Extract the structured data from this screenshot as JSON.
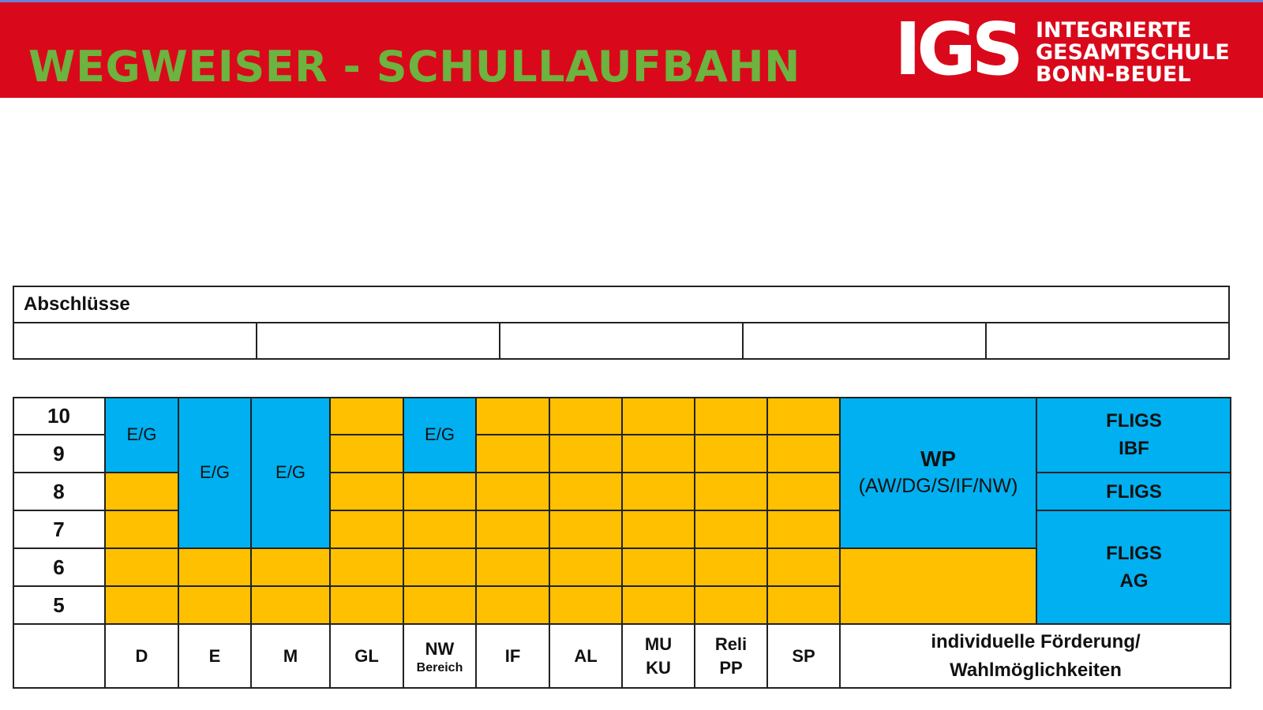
{
  "header": {
    "title": "WEGWEISER - SCHULLAUFBAHN",
    "logo_short": "IGS",
    "logo_lines": [
      "INTEGRIERTE",
      "GESAMTSCHULE",
      "BONN-BEUEL"
    ],
    "background_color": "#d9091b",
    "title_color": "#6cb33f"
  },
  "abschluesse": {
    "heading": "Abschlüsse",
    "cells": [
      "",
      "",
      "",
      "",
      ""
    ]
  },
  "plan": {
    "grades": [
      "10",
      "9",
      "8",
      "7",
      "6",
      "5"
    ],
    "eg_label": "E/G",
    "subjects": {
      "d": "D",
      "e": "E",
      "m": "M",
      "gl": "GL",
      "nw": "NW",
      "nw_sub": "Bereich",
      "if": "IF",
      "al": "AL",
      "mu": "MU",
      "ku": "KU",
      "reli": "Reli",
      "pp": "PP",
      "sp": "SP",
      "indiv_1": "individuelle Förderung/",
      "indiv_2": "Wahlmöglichkeiten"
    },
    "wp": {
      "title": "WP",
      "subtitle": "(AW/DG/S/IF/NW)"
    },
    "fligs": {
      "top_1": "FLIGS",
      "top_2": "IBF",
      "mid": "FLIGS",
      "bottom_1": "FLIGS",
      "bottom_2": "AG"
    },
    "colors": {
      "core": "#ffc000",
      "choice": "#00b0f0"
    }
  }
}
